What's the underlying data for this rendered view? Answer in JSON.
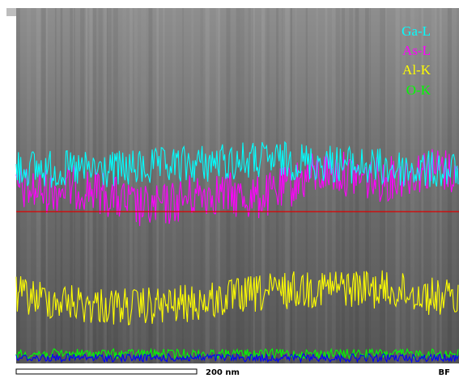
{
  "legend": [
    "Ga-L",
    "As-L",
    "Al-K",
    "O-K"
  ],
  "scale_bar": "200 nm",
  "mode": "BF"
}
